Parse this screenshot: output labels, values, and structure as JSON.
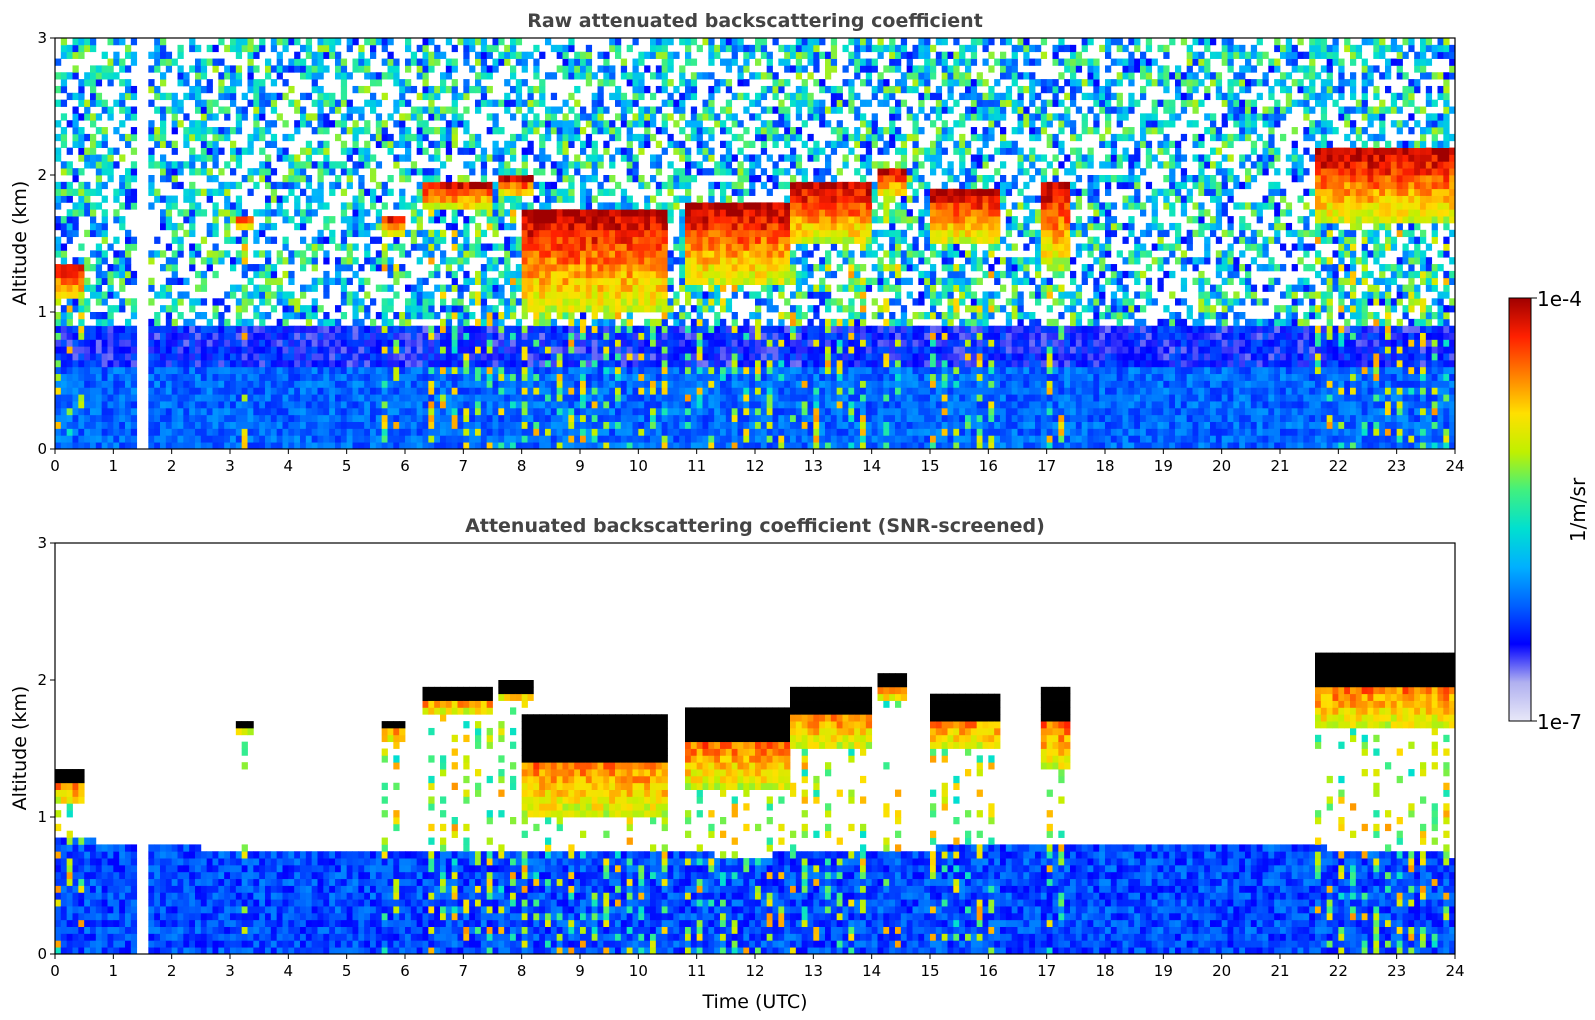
{
  "colors": {
    "colormap": [
      "#e8e8f8",
      "#b0b0f0",
      "#0000ff",
      "#0060ff",
      "#00b0ff",
      "#00e0d0",
      "#40f080",
      "#c0f000",
      "#ffe000",
      "#ff8000",
      "#ff2000",
      "#a00000"
    ],
    "screened_strong": "#000000",
    "background": "#ffffff"
  },
  "colorbar": {
    "label": "1/m/sr",
    "max_label": "1e-4",
    "min_label": "1e-7",
    "range": [
      1e-07,
      0.0001
    ],
    "scale": "log"
  },
  "chart_data": [
    {
      "type": "heatmap",
      "title": "Raw attenuated backscattering coefficient",
      "xlabel": "",
      "ylabel": "Altitude (km)",
      "xlim": [
        0,
        24
      ],
      "ylim": [
        0,
        3
      ],
      "xticks": [
        "0",
        "1",
        "2",
        "3",
        "4",
        "5",
        "6",
        "7",
        "8",
        "9",
        "10",
        "11",
        "12",
        "13",
        "14",
        "15",
        "16",
        "17",
        "18",
        "19",
        "20",
        "21",
        "22",
        "23",
        "24"
      ],
      "yticks": [
        "0",
        "1",
        "2",
        "3"
      ],
      "data_gaps_hours": [
        1.5
      ],
      "clouds": [
        {
          "start": 0.0,
          "end": 0.45,
          "base": 1.1,
          "top": 1.35
        },
        {
          "start": 3.1,
          "end": 3.4,
          "base": 1.62,
          "top": 1.72
        },
        {
          "start": 5.6,
          "end": 6.0,
          "base": 1.55,
          "top": 1.72
        },
        {
          "start": 6.3,
          "end": 7.5,
          "base": 1.75,
          "top": 1.95
        },
        {
          "start": 7.6,
          "end": 8.2,
          "base": 1.85,
          "top": 1.98
        },
        {
          "start": 8.0,
          "end": 10.5,
          "base": 1.0,
          "top": 1.75
        },
        {
          "start": 10.8,
          "end": 12.6,
          "base": 1.2,
          "top": 1.8
        },
        {
          "start": 12.6,
          "end": 14.0,
          "base": 1.5,
          "top": 1.95
        },
        {
          "start": 14.1,
          "end": 14.6,
          "base": 1.85,
          "top": 2.05
        },
        {
          "start": 15.0,
          "end": 16.2,
          "base": 1.5,
          "top": 1.9
        },
        {
          "start": 16.9,
          "end": 17.4,
          "base": 1.35,
          "top": 1.95
        },
        {
          "start": 21.6,
          "end": 24.0,
          "base": 1.65,
          "top": 2.2
        }
      ]
    },
    {
      "type": "heatmap",
      "title": "Attenuated backscattering coefficient (SNR-screened)",
      "xlabel": "Time (UTC)",
      "ylabel": "Altitude (km)",
      "xlim": [
        0,
        24
      ],
      "ylim": [
        0,
        3
      ],
      "xticks": [
        "0",
        "1",
        "2",
        "3",
        "4",
        "5",
        "6",
        "7",
        "8",
        "9",
        "10",
        "11",
        "12",
        "13",
        "14",
        "15",
        "16",
        "17",
        "18",
        "19",
        "20",
        "21",
        "22",
        "23",
        "24"
      ],
      "yticks": [
        "0",
        "1",
        "2",
        "3"
      ],
      "data_gaps_hours": [
        1.5
      ],
      "boundary_layer_top_km": [
        [
          0,
          0.85
        ],
        [
          2,
          0.78
        ],
        [
          5,
          0.75
        ],
        [
          8,
          0.75
        ],
        [
          12,
          0.72
        ],
        [
          16.5,
          0.8
        ],
        [
          20,
          0.82
        ],
        [
          24,
          0.72
        ]
      ],
      "clouds": [
        {
          "start": 0.0,
          "end": 0.45,
          "base": 1.1,
          "top": 1.35
        },
        {
          "start": 3.1,
          "end": 3.4,
          "base": 1.62,
          "top": 1.72
        },
        {
          "start": 5.6,
          "end": 6.0,
          "base": 1.55,
          "top": 1.72
        },
        {
          "start": 6.3,
          "end": 7.5,
          "base": 1.75,
          "top": 1.95
        },
        {
          "start": 7.6,
          "end": 8.2,
          "base": 1.85,
          "top": 1.98
        },
        {
          "start": 8.0,
          "end": 10.5,
          "base": 1.0,
          "top": 1.75
        },
        {
          "start": 10.8,
          "end": 12.6,
          "base": 1.2,
          "top": 1.8
        },
        {
          "start": 12.6,
          "end": 14.0,
          "base": 1.5,
          "top": 1.95
        },
        {
          "start": 14.1,
          "end": 14.6,
          "base": 1.85,
          "top": 2.05
        },
        {
          "start": 15.0,
          "end": 16.2,
          "base": 1.5,
          "top": 1.9
        },
        {
          "start": 16.9,
          "end": 17.4,
          "base": 1.35,
          "top": 1.95
        },
        {
          "start": 21.6,
          "end": 24.0,
          "base": 1.65,
          "top": 2.2
        }
      ]
    }
  ]
}
